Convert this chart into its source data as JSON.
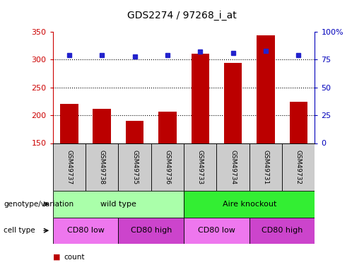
{
  "title": "GDS2274 / 97268_i_at",
  "samples": [
    "GSM49737",
    "GSM49738",
    "GSM49735",
    "GSM49736",
    "GSM49733",
    "GSM49734",
    "GSM49731",
    "GSM49732"
  ],
  "counts": [
    220,
    212,
    190,
    207,
    311,
    294,
    344,
    224
  ],
  "percentiles": [
    79,
    79,
    78,
    79,
    82,
    81,
    83,
    79
  ],
  "ylim_left": [
    150,
    350
  ],
  "ylim_right": [
    0,
    100
  ],
  "yticks_left": [
    150,
    200,
    250,
    300,
    350
  ],
  "yticks_right": [
    0,
    25,
    50,
    75,
    100
  ],
  "bar_color": "#bb0000",
  "dot_color": "#2222cc",
  "grid_color": "#000000",
  "genotype_groups": [
    {
      "label": "wild type",
      "start": 0,
      "end": 4,
      "color": "#aaffaa"
    },
    {
      "label": "Aire knockout",
      "start": 4,
      "end": 8,
      "color": "#33ee33"
    }
  ],
  "cell_type_groups": [
    {
      "label": "CD80 low",
      "start": 0,
      "end": 2,
      "color": "#ee77ee"
    },
    {
      "label": "CD80 high",
      "start": 2,
      "end": 4,
      "color": "#cc44cc"
    },
    {
      "label": "CD80 low",
      "start": 4,
      "end": 6,
      "color": "#ee77ee"
    },
    {
      "label": "CD80 high",
      "start": 6,
      "end": 8,
      "color": "#cc44cc"
    }
  ],
  "left_axis_color": "#cc0000",
  "right_axis_color": "#0000bb",
  "xlabel_genotype": "genotype/variation",
  "xlabel_celltype": "cell type",
  "sample_bg_color": "#cccccc",
  "plot_bg_color": "#ffffff"
}
